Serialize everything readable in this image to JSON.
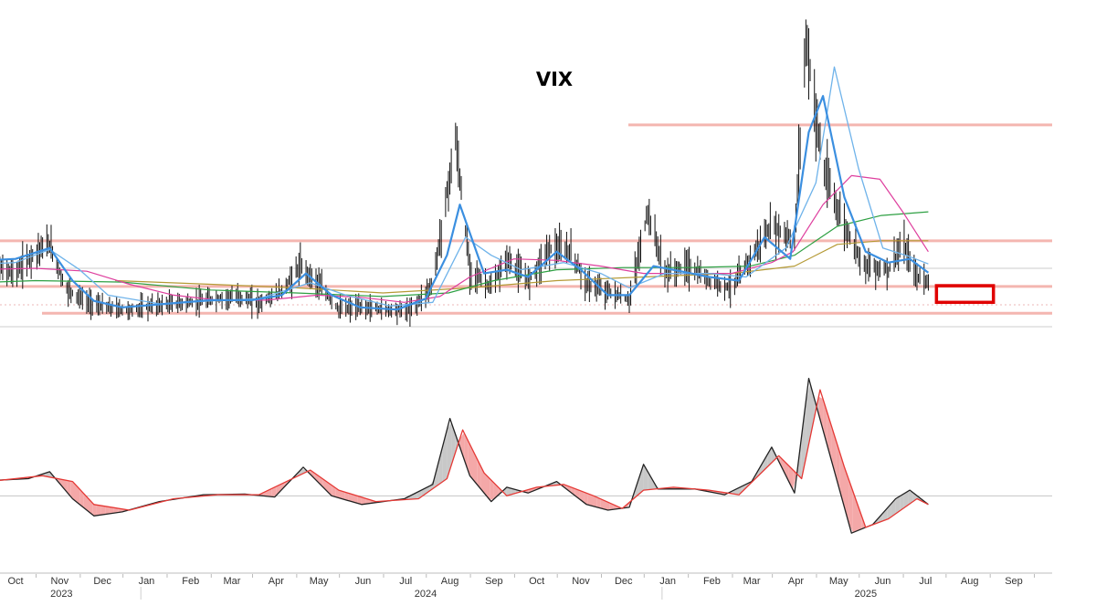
{
  "chart_data": {
    "type": "line",
    "title": "VIX",
    "x_axis": {
      "months": [
        "Oct",
        "Nov",
        "Dec",
        "Jan",
        "Feb",
        "Mar",
        "Apr",
        "May",
        "Jun",
        "Jul",
        "Aug",
        "Sep",
        "Oct",
        "Nov",
        "Dec",
        "Jan",
        "Feb",
        "Mar",
        "Apr",
        "May",
        "Jun",
        "Jul",
        "Aug",
        "Sep"
      ],
      "years": [
        "2023",
        "2024",
        "2025"
      ],
      "range": [
        "2023-10-01",
        "2025-09-30"
      ]
    },
    "price_panel": {
      "ylim": [
        9,
        55
      ],
      "horizontal_levels": [
        {
          "value": 12.0,
          "color": "#f4b6b0",
          "kind": "support"
        },
        {
          "value": 15.7,
          "color": "#f4b6b0",
          "kind": "support"
        },
        {
          "value": 22.0,
          "color": "#f4b6b0",
          "kind": "resistance"
        },
        {
          "value": 38.0,
          "color": "#f4b6b0",
          "kind": "resistance"
        },
        {
          "value": 18.2,
          "color": "#cccccc",
          "kind": "reference"
        }
      ],
      "target_box": {
        "x_start": "2025-07-01",
        "x_end": "2025-08-10",
        "y_low": 13.5,
        "y_high": 15.8,
        "color": "#e00000"
      },
      "close_series": {
        "name": "",
        "color": "#111111",
        "points": [
          [
            "2023-09-01",
            19.5
          ],
          [
            "2023-09-15",
            18.5
          ],
          [
            "2023-10-01",
            17.5
          ],
          [
            "2023-10-15",
            20.5
          ],
          [
            "2023-10-25",
            21.5
          ],
          [
            "2023-11-05",
            15.5
          ],
          [
            "2023-11-20",
            13.5
          ],
          [
            "2023-12-05",
            12.7
          ],
          [
            "2023-12-20",
            12.4
          ],
          [
            "2024-01-05",
            13.0
          ],
          [
            "2024-01-20",
            13.3
          ],
          [
            "2024-02-05",
            13.5
          ],
          [
            "2024-02-20",
            14.0
          ],
          [
            "2024-03-05",
            14.3
          ],
          [
            "2024-03-20",
            13.4
          ],
          [
            "2024-04-05",
            15.0
          ],
          [
            "2024-04-18",
            18.5
          ],
          [
            "2024-05-01",
            16.0
          ],
          [
            "2024-05-15",
            12.5
          ],
          [
            "2024-06-01",
            12.8
          ],
          [
            "2024-06-20",
            12.5
          ],
          [
            "2024-07-05",
            12.4
          ],
          [
            "2024-07-20",
            16.0
          ],
          [
            "2024-08-05",
            36.0
          ],
          [
            "2024-08-15",
            18.0
          ],
          [
            "2024-08-30",
            15.5
          ],
          [
            "2024-09-10",
            19.5
          ],
          [
            "2024-09-25",
            16.5
          ],
          [
            "2024-10-10",
            21.0
          ],
          [
            "2024-10-25",
            20.5
          ],
          [
            "2024-11-05",
            16.0
          ],
          [
            "2024-11-20",
            15.0
          ],
          [
            "2024-12-05",
            13.8
          ],
          [
            "2024-12-18",
            26.0
          ],
          [
            "2024-12-30",
            17.5
          ],
          [
            "2025-01-15",
            18.5
          ],
          [
            "2025-01-30",
            16.5
          ],
          [
            "2025-02-15",
            15.5
          ],
          [
            "2025-02-28",
            19.5
          ],
          [
            "2025-03-15",
            24.0
          ],
          [
            "2025-03-31",
            22.0
          ],
          [
            "2025-04-08",
            50.0
          ],
          [
            "2025-04-20",
            32.0
          ],
          [
            "2025-05-05",
            24.0
          ],
          [
            "2025-05-20",
            18.5
          ],
          [
            "2025-06-05",
            18.0
          ],
          [
            "2025-06-15",
            21.5
          ],
          [
            "2025-06-25",
            17.0
          ],
          [
            "2025-07-03",
            16.5
          ]
        ]
      },
      "moving_averages": [
        {
          "name": "",
          "color": "#3b8fe0",
          "width": 2.2,
          "points": [
            [
              "2023-09-01",
              19.2
            ],
            [
              "2023-10-01",
              19.5
            ],
            [
              "2023-10-25",
              21.0
            ],
            [
              "2023-11-10",
              16.5
            ],
            [
              "2023-11-25",
              13.7
            ],
            [
              "2023-12-15",
              12.8
            ],
            [
              "2024-01-15",
              13.3
            ],
            [
              "2024-02-15",
              13.8
            ],
            [
              "2024-03-15",
              13.8
            ],
            [
              "2024-04-05",
              14.5
            ],
            [
              "2024-04-22",
              17.5
            ],
            [
              "2024-05-10",
              14.5
            ],
            [
              "2024-05-30",
              12.8
            ],
            [
              "2024-06-25",
              12.5
            ],
            [
              "2024-07-15",
              14.0
            ],
            [
              "2024-07-30",
              20.0
            ],
            [
              "2024-08-08",
              27.0
            ],
            [
              "2024-08-25",
              17.5
            ],
            [
              "2024-09-10",
              18.0
            ],
            [
              "2024-09-25",
              17.0
            ],
            [
              "2024-10-15",
              20.5
            ],
            [
              "2024-11-01",
              18.0
            ],
            [
              "2024-11-20",
              14.5
            ],
            [
              "2024-12-05",
              14.5
            ],
            [
              "2024-12-22",
              18.5
            ],
            [
              "2025-01-10",
              17.8
            ],
            [
              "2025-01-30",
              17.0
            ],
            [
              "2025-02-20",
              16.5
            ],
            [
              "2025-03-10",
              22.5
            ],
            [
              "2025-03-28",
              19.5
            ],
            [
              "2025-04-10",
              37.0
            ],
            [
              "2025-04-20",
              42.0
            ],
            [
              "2025-05-05",
              28.0
            ],
            [
              "2025-05-20",
              20.5
            ],
            [
              "2025-06-05",
              19.0
            ],
            [
              "2025-06-20",
              19.5
            ],
            [
              "2025-07-03",
              17.6
            ]
          ]
        },
        {
          "name": "",
          "color": "#6fb3ea",
          "width": 1.3,
          "points": [
            [
              "2023-09-01",
              18.7
            ],
            [
              "2023-10-01",
              19.0
            ],
            [
              "2023-10-25",
              20.8
            ],
            [
              "2023-11-15",
              18.0
            ],
            [
              "2023-12-05",
              14.5
            ],
            [
              "2024-01-10",
              13.3
            ],
            [
              "2024-02-15",
              13.7
            ],
            [
              "2024-03-20",
              14.0
            ],
            [
              "2024-04-25",
              16.2
            ],
            [
              "2024-05-20",
              14.5
            ],
            [
              "2024-06-20",
              13.0
            ],
            [
              "2024-07-20",
              13.5
            ],
            [
              "2024-08-12",
              22.5
            ],
            [
              "2024-08-30",
              20.0
            ],
            [
              "2024-09-20",
              18.0
            ],
            [
              "2024-10-20",
              19.0
            ],
            [
              "2024-11-15",
              17.5
            ],
            [
              "2024-12-05",
              15.5
            ],
            [
              "2024-12-30",
              17.5
            ],
            [
              "2025-01-30",
              17.5
            ],
            [
              "2025-02-25",
              17.0
            ],
            [
              "2025-03-25",
              21.0
            ],
            [
              "2025-04-15",
              30.0
            ],
            [
              "2025-04-28",
              46.0
            ],
            [
              "2025-05-15",
              32.0
            ],
            [
              "2025-06-01",
              21.0
            ],
            [
              "2025-06-20",
              19.8
            ],
            [
              "2025-07-03",
              18.8
            ]
          ]
        },
        {
          "name": "",
          "color": "#de3f9e",
          "width": 1.2,
          "points": [
            [
              "2023-09-01",
              18.0
            ],
            [
              "2023-10-15",
              18.2
            ],
            [
              "2023-11-20",
              17.8
            ],
            [
              "2023-12-20",
              16.0
            ],
            [
              "2024-01-20",
              14.5
            ],
            [
              "2024-02-20",
              13.8
            ],
            [
              "2024-03-25",
              13.8
            ],
            [
              "2024-04-30",
              14.5
            ],
            [
              "2024-05-30",
              14.2
            ],
            [
              "2024-06-30",
              13.5
            ],
            [
              "2024-07-25",
              14.3
            ],
            [
              "2024-08-15",
              17.0
            ],
            [
              "2024-09-15",
              19.5
            ],
            [
              "2024-10-15",
              19.3
            ],
            [
              "2024-11-15",
              18.5
            ],
            [
              "2024-12-15",
              17.5
            ],
            [
              "2025-01-15",
              17.5
            ],
            [
              "2025-02-15",
              17.5
            ],
            [
              "2025-03-15",
              19.0
            ],
            [
              "2025-03-30",
              20.5
            ],
            [
              "2025-04-20",
              27.0
            ],
            [
              "2025-05-10",
              31.0
            ],
            [
              "2025-05-30",
              30.5
            ],
            [
              "2025-06-15",
              26.0
            ],
            [
              "2025-07-03",
              20.5
            ]
          ]
        },
        {
          "name": "",
          "color": "#2ea043",
          "width": 1.2,
          "points": [
            [
              "2023-09-01",
              16.2
            ],
            [
              "2023-10-15",
              16.5
            ],
            [
              "2023-12-15",
              16.3
            ],
            [
              "2024-02-15",
              15.2
            ],
            [
              "2024-04-15",
              14.8
            ],
            [
              "2024-06-15",
              14.3
            ],
            [
              "2024-07-31",
              14.8
            ],
            [
              "2024-09-01",
              16.5
            ],
            [
              "2024-10-15",
              18.0
            ],
            [
              "2024-12-01",
              18.3
            ],
            [
              "2025-01-15",
              18.3
            ],
            [
              "2025-02-28",
              18.5
            ],
            [
              "2025-03-31",
              20.0
            ],
            [
              "2025-04-30",
              24.0
            ],
            [
              "2025-05-31",
              25.5
            ],
            [
              "2025-07-03",
              26.0
            ]
          ]
        },
        {
          "name": "",
          "color": "#b59a35",
          "width": 1.2,
          "points": [
            [
              "2023-12-10",
              16.5
            ],
            [
              "2024-02-15",
              16.0
            ],
            [
              "2024-04-15",
              15.5
            ],
            [
              "2024-06-15",
              14.8
            ],
            [
              "2024-08-15",
              15.5
            ],
            [
              "2024-10-15",
              16.5
            ],
            [
              "2024-12-15",
              17.0
            ],
            [
              "2025-02-15",
              17.5
            ],
            [
              "2025-03-31",
              18.5
            ],
            [
              "2025-04-30",
              21.5
            ],
            [
              "2025-05-31",
              22.0
            ],
            [
              "2025-07-03",
              22.0
            ]
          ]
        }
      ]
    },
    "oscillator_panel": {
      "zero_line": 0,
      "ylim": [
        -1.3,
        2.6
      ],
      "fast_line": {
        "name": "",
        "color": "#222222",
        "points": [
          [
            "2023-09-01",
            0.25
          ],
          [
            "2023-10-10",
            0.3
          ],
          [
            "2023-10-25",
            0.42
          ],
          [
            "2023-11-10",
            -0.05
          ],
          [
            "2023-11-25",
            -0.35
          ],
          [
            "2023-12-15",
            -0.28
          ],
          [
            "2024-01-10",
            -0.1
          ],
          [
            "2024-02-10",
            0.02
          ],
          [
            "2024-03-10",
            0.03
          ],
          [
            "2024-03-31",
            -0.02
          ],
          [
            "2024-04-20",
            0.5
          ],
          [
            "2024-05-10",
            0.0
          ],
          [
            "2024-05-31",
            -0.15
          ],
          [
            "2024-06-30",
            -0.05
          ],
          [
            "2024-07-20",
            0.2
          ],
          [
            "2024-08-01",
            1.35
          ],
          [
            "2024-08-15",
            0.35
          ],
          [
            "2024-08-30",
            -0.1
          ],
          [
            "2024-09-10",
            0.15
          ],
          [
            "2024-09-25",
            0.05
          ],
          [
            "2024-10-15",
            0.25
          ],
          [
            "2024-11-05",
            -0.15
          ],
          [
            "2024-11-20",
            -0.25
          ],
          [
            "2024-12-05",
            -0.2
          ],
          [
            "2024-12-15",
            0.55
          ],
          [
            "2024-12-25",
            0.12
          ],
          [
            "2025-01-20",
            0.12
          ],
          [
            "2025-02-10",
            0.02
          ],
          [
            "2025-03-01",
            0.25
          ],
          [
            "2025-03-15",
            0.85
          ],
          [
            "2025-03-31",
            0.05
          ],
          [
            "2025-04-10",
            2.05
          ],
          [
            "2025-04-25",
            0.7
          ],
          [
            "2025-05-10",
            -0.65
          ],
          [
            "2025-05-25",
            -0.5
          ],
          [
            "2025-06-10",
            -0.05
          ],
          [
            "2025-06-20",
            0.1
          ],
          [
            "2025-07-03",
            -0.15
          ]
        ]
      },
      "signal_line": {
        "name": "",
        "color": "#e53935",
        "points": [
          [
            "2023-09-01",
            0.22
          ],
          [
            "2023-10-20",
            0.35
          ],
          [
            "2023-11-10",
            0.25
          ],
          [
            "2023-11-25",
            -0.15
          ],
          [
            "2023-12-20",
            -0.25
          ],
          [
            "2024-01-20",
            -0.05
          ],
          [
            "2024-02-20",
            0.02
          ],
          [
            "2024-03-20",
            0.02
          ],
          [
            "2024-04-25",
            0.45
          ],
          [
            "2024-05-15",
            0.1
          ],
          [
            "2024-06-10",
            -0.1
          ],
          [
            "2024-07-10",
            -0.05
          ],
          [
            "2024-07-30",
            0.3
          ],
          [
            "2024-08-10",
            1.15
          ],
          [
            "2024-08-25",
            0.4
          ],
          [
            "2024-09-10",
            0.0
          ],
          [
            "2024-10-01",
            0.15
          ],
          [
            "2024-10-20",
            0.2
          ],
          [
            "2024-11-10",
            0.0
          ],
          [
            "2024-11-30",
            -0.22
          ],
          [
            "2024-12-15",
            0.1
          ],
          [
            "2025-01-05",
            0.15
          ],
          [
            "2025-01-30",
            0.1
          ],
          [
            "2025-02-20",
            0.02
          ],
          [
            "2025-03-20",
            0.7
          ],
          [
            "2025-04-05",
            0.3
          ],
          [
            "2025-04-18",
            1.85
          ],
          [
            "2025-05-05",
            0.5
          ],
          [
            "2025-05-20",
            -0.55
          ],
          [
            "2025-06-05",
            -0.4
          ],
          [
            "2025-06-25",
            -0.05
          ],
          [
            "2025-07-03",
            -0.15
          ]
        ]
      }
    },
    "grid": false,
    "legend": "none"
  },
  "annotations": {
    "highlight_box_color": "#e00000",
    "fill_above_color": "#c8c8c8",
    "fill_below_color": "#f4a8a8"
  }
}
